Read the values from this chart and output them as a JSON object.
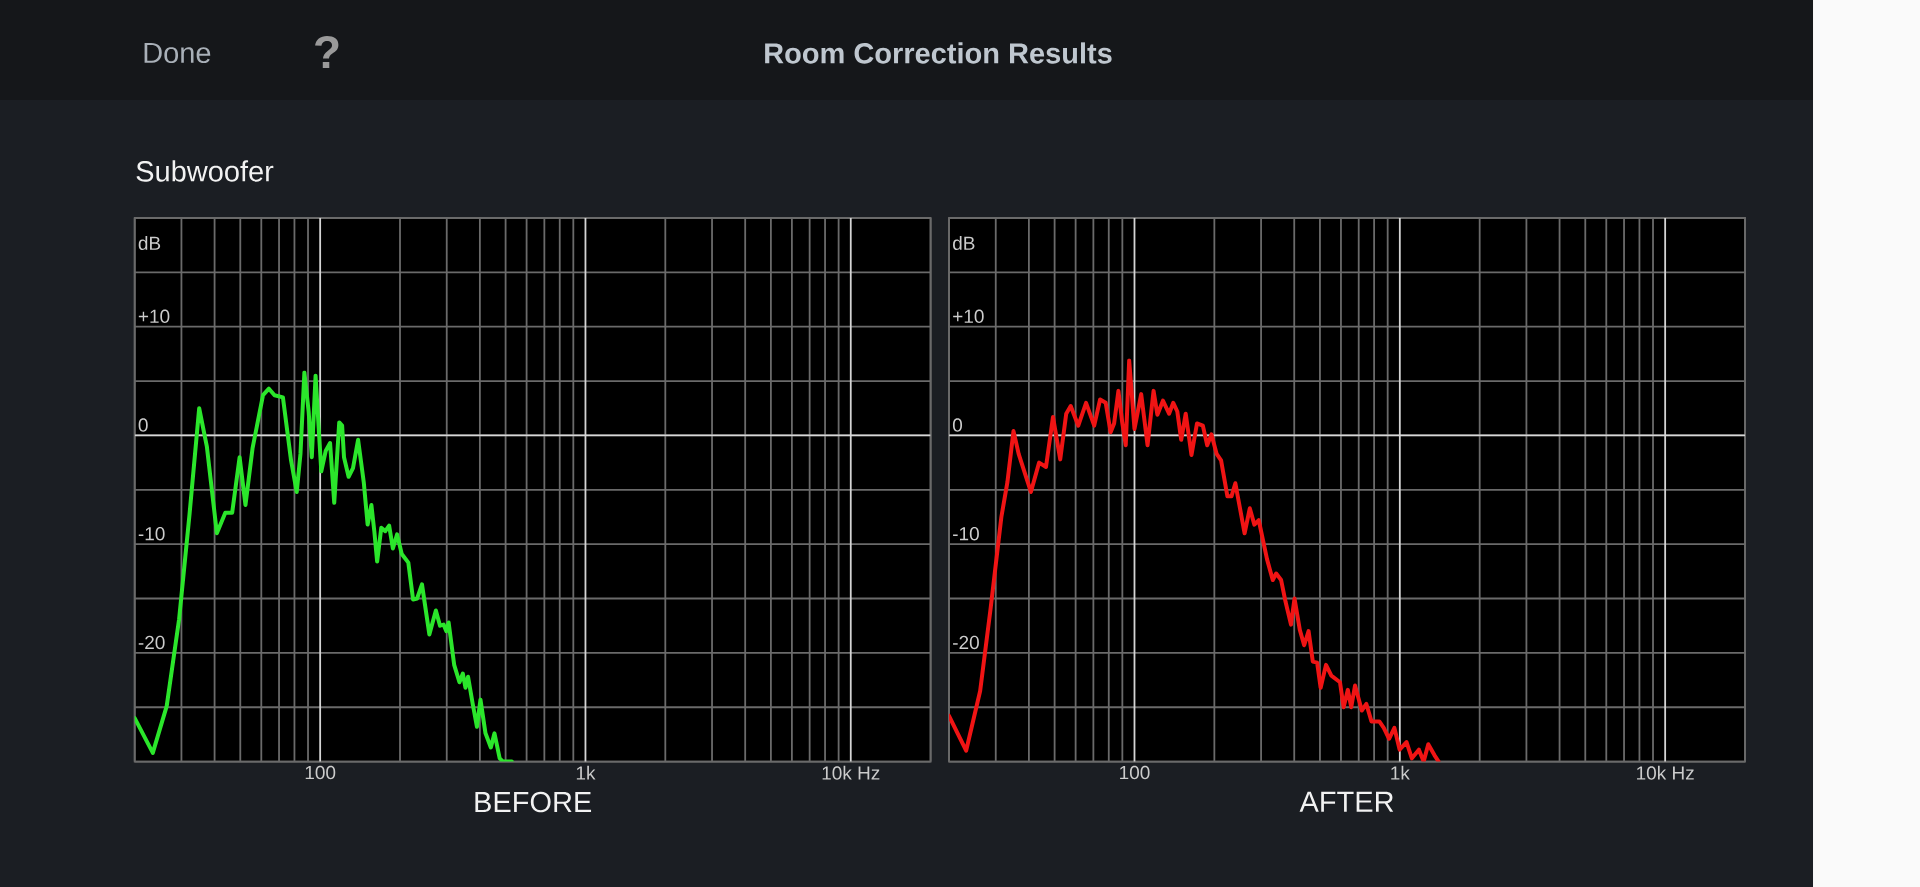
{
  "chart_data": [
    {
      "type": "other",
      "title": "Room Correction Results",
      "subtitle": "Subwoofer",
      "annotations": [
        "Done",
        "?"
      ]
    },
    {
      "type": "line",
      "title": "BEFORE",
      "ylabel": "dB",
      "color": "#2BE62B",
      "log": "x",
      "grid": true,
      "xlim": [
        20,
        20000
      ],
      "ylim": [
        -30,
        20
      ],
      "xticks": [
        {
          "value": 20,
          "label": null
        },
        {
          "value": 30,
          "label": null
        },
        {
          "value": 40,
          "label": null
        },
        {
          "value": 50,
          "label": null
        },
        {
          "value": 60,
          "label": null
        },
        {
          "value": 70,
          "label": null
        },
        {
          "value": 80,
          "label": null
        },
        {
          "value": 90,
          "label": null
        },
        100,
        {
          "value": 200,
          "label": null
        },
        {
          "value": 300,
          "label": null
        },
        {
          "value": 400,
          "label": null
        },
        {
          "value": 500,
          "label": null
        },
        {
          "value": 600,
          "label": null
        },
        {
          "value": 700,
          "label": null
        },
        {
          "value": 800,
          "label": null
        },
        {
          "value": 900,
          "label": null
        },
        {
          "value": 1000,
          "label": "1k"
        },
        {
          "value": 2000,
          "label": null
        },
        {
          "value": 3000,
          "label": null
        },
        {
          "value": 4000,
          "label": null
        },
        {
          "value": 5000,
          "label": null
        },
        {
          "value": 6000,
          "label": null
        },
        {
          "value": 7000,
          "label": null
        },
        {
          "value": 8000,
          "label": null
        },
        {
          "value": 9000,
          "label": null
        },
        {
          "value": 10000,
          "label": "10k Hz"
        },
        {
          "value": 20000,
          "label": null
        }
      ],
      "yticks": [
        {
          "value": -30,
          "label": null
        },
        {
          "value": -25,
          "label": null
        },
        -20,
        {
          "value": -15,
          "label": null
        },
        -10,
        {
          "value": -5,
          "label": null
        },
        0,
        {
          "value": 5,
          "label": null
        },
        {
          "value": 10,
          "label": "+10"
        },
        {
          "value": 15,
          "label": null
        },
        {
          "value": 20,
          "label": null
        }
      ],
      "ref_lines": [
        {
          "axis": "y",
          "value": 0,
          "color": "#D8D8D8"
        }
      ],
      "x": [
        20,
        23.4,
        26.4,
        29.4,
        32.2,
        35,
        37.4,
        40.8,
        43.9,
        46.6,
        49.7,
        52.3,
        55.6,
        60.9,
        64.1,
        67.3,
        72.4,
        77.7,
        81.6,
        84.3,
        87.2,
        90.5,
        93,
        96.1,
        101,
        105,
        109,
        113,
        118,
        121,
        123,
        128,
        133,
        139,
        146,
        151,
        156,
        160,
        164,
        170,
        176,
        182,
        188,
        195,
        203,
        215,
        224,
        232,
        242,
        258,
        273,
        283,
        292,
        299,
        305,
        320,
        335,
        345,
        353,
        361,
        376,
        390,
        402,
        420,
        440,
        454,
        475,
        489,
        528
      ],
      "values": [
        -26.0,
        -29.2,
        -24.9,
        -16.9,
        -7.2,
        2.5,
        -1.0,
        -9.0,
        -7.1,
        -7.1,
        -2.0,
        -6.4,
        -1.2,
        3.7,
        4.3,
        3.7,
        3.5,
        -2.3,
        -5.2,
        -1.7,
        5.8,
        2.2,
        -2.0,
        5.5,
        -3.3,
        -1.4,
        -0.7,
        -6.2,
        1.2,
        0.9,
        -2.0,
        -3.8,
        -3.0,
        -0.4,
        -4.3,
        -8.2,
        -6.4,
        -8.8,
        -11.6,
        -8.5,
        -8.8,
        -8.3,
        -10.4,
        -9.1,
        -10.9,
        -11.7,
        -15.1,
        -15.0,
        -13.7,
        -18.3,
        -16.1,
        -17.5,
        -17.4,
        -18.0,
        -17.2,
        -21.1,
        -22.7,
        -21.9,
        -23.2,
        -22.2,
        -24.7,
        -26.8,
        -24.3,
        -27.4,
        -28.7,
        -27.4,
        -29.7,
        -30,
        -30
      ]
    },
    {
      "type": "line",
      "title": "AFTER",
      "ylabel": "dB",
      "color": "#F01414",
      "log": "x",
      "grid": true,
      "xlim": [
        20,
        20000
      ],
      "ylim": [
        -30,
        20
      ],
      "xticks": [
        {
          "value": 20,
          "label": null
        },
        {
          "value": 30,
          "label": null
        },
        {
          "value": 40,
          "label": null
        },
        {
          "value": 50,
          "label": null
        },
        {
          "value": 60,
          "label": null
        },
        {
          "value": 70,
          "label": null
        },
        {
          "value": 80,
          "label": null
        },
        {
          "value": 90,
          "label": null
        },
        100,
        {
          "value": 200,
          "label": null
        },
        {
          "value": 300,
          "label": null
        },
        {
          "value": 400,
          "label": null
        },
        {
          "value": 500,
          "label": null
        },
        {
          "value": 600,
          "label": null
        },
        {
          "value": 700,
          "label": null
        },
        {
          "value": 800,
          "label": null
        },
        {
          "value": 900,
          "label": null
        },
        {
          "value": 1000,
          "label": "1k"
        },
        {
          "value": 2000,
          "label": null
        },
        {
          "value": 3000,
          "label": null
        },
        {
          "value": 4000,
          "label": null
        },
        {
          "value": 5000,
          "label": null
        },
        {
          "value": 6000,
          "label": null
        },
        {
          "value": 7000,
          "label": null
        },
        {
          "value": 8000,
          "label": null
        },
        {
          "value": 9000,
          "label": null
        },
        {
          "value": 10000,
          "label": "10k Hz"
        },
        {
          "value": 20000,
          "label": null
        }
      ],
      "yticks": [
        {
          "value": -30,
          "label": null
        },
        {
          "value": -25,
          "label": null
        },
        -20,
        {
          "value": -15,
          "label": null
        },
        -10,
        {
          "value": -5,
          "label": null
        },
        0,
        {
          "value": 5,
          "label": null
        },
        {
          "value": 10,
          "label": "+10"
        },
        {
          "value": 15,
          "label": null
        },
        {
          "value": 20,
          "label": null
        }
      ],
      "ref_lines": [
        {
          "axis": "y",
          "value": 0,
          "color": "#D8D8D8"
        }
      ],
      "x": [
        20,
        23.2,
        26.2,
        28.7,
        31.5,
        33.2,
        35,
        36.6,
        40.7,
        43.7,
        46.4,
        49.3,
        52.5,
        55.3,
        57.5,
        61.4,
        65.7,
        70.5,
        74.2,
        77.9,
        81.3,
        83.8,
        87,
        89.9,
        92.7,
        95.5,
        100,
        106,
        112,
        118,
        122,
        128,
        135,
        140,
        145,
        150,
        156,
        164,
        172,
        181,
        188,
        195,
        204,
        212,
        224,
        232,
        240,
        260,
        272,
        283,
        294,
        316,
        332,
        342,
        357,
        371,
        389,
        401,
        420,
        436,
        453,
        470,
        488,
        503,
        527,
        552,
        595,
        614,
        637,
        656,
        678,
        719,
        748,
        782,
        837,
        870,
        911,
        954,
        998,
        1060,
        1110,
        1180,
        1230,
        1280,
        1350,
        1400
      ],
      "values": [
        -25.8,
        -29.0,
        -23.5,
        -15.9,
        -7.5,
        -4.3,
        0.4,
        -1.7,
        -5.2,
        -2.5,
        -2.9,
        1.7,
        -2.2,
        2.0,
        2.7,
        0.9,
        3.0,
        0.9,
        3.3,
        3.0,
        0.3,
        1.1,
        4.1,
        1.2,
        -0.9,
        6.9,
        0.6,
        3.8,
        -0.9,
        4.1,
        1.9,
        3.2,
        2.0,
        3.0,
        2.2,
        -0.4,
        2.0,
        -1.8,
        1.1,
        0.9,
        -0.9,
        0.1,
        -1.7,
        -2.3,
        -5.6,
        -5.6,
        -4.4,
        -9.0,
        -6.7,
        -8.2,
        -7.8,
        -11.4,
        -13.3,
        -12.7,
        -13.3,
        -15.3,
        -17.4,
        -15.0,
        -17.9,
        -19.3,
        -18.0,
        -20.8,
        -20.9,
        -23.2,
        -21.1,
        -22.1,
        -22.7,
        -25.0,
        -23.4,
        -25.0,
        -23.0,
        -25.3,
        -24.7,
        -26.3,
        -26.3,
        -26.9,
        -27.9,
        -26.9,
        -28.9,
        -28.2,
        -29.7,
        -28.9,
        -30.0,
        -28.4,
        -29.4,
        -30.0
      ]
    }
  ]
}
